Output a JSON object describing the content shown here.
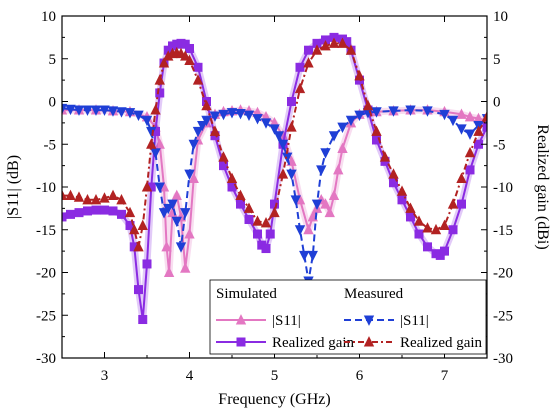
{
  "chart_data": {
    "type": "line",
    "xlabel": "Frequency (GHz)",
    "ylabel_left": "|S11| (dB)",
    "ylabel_right": "Realized gain (dBi)",
    "xlim": [
      2.5,
      7.5
    ],
    "ylim_left": [
      -30,
      10
    ],
    "ylim_right": [
      -30,
      10
    ],
    "x_ticks": [
      3,
      4,
      5,
      6,
      7
    ],
    "y_ticks": [
      -30,
      -25,
      -20,
      -15,
      -10,
      -5,
      0,
      5,
      10
    ],
    "grid": false,
    "legend": {
      "placement": "bottom-right",
      "group_titles": [
        "Simulated",
        "Measured"
      ]
    },
    "series": [
      {
        "name": "|S11|",
        "group": "Simulated",
        "axis": "left",
        "color": "#e377c2",
        "marker": "triangle-up",
        "line": "solid",
        "x": [
          2.5,
          2.7,
          2.9,
          3.1,
          3.3,
          3.5,
          3.6,
          3.65,
          3.7,
          3.73,
          3.76,
          3.8,
          3.85,
          3.9,
          3.95,
          4.0,
          4.05,
          4.1,
          4.2,
          4.3,
          4.4,
          4.5,
          4.6,
          4.7,
          4.8,
          4.9,
          5.0,
          5.1,
          5.2,
          5.3,
          5.4,
          5.45,
          5.5,
          5.55,
          5.6,
          5.65,
          5.7,
          5.75,
          5.8,
          5.9,
          6.0,
          6.2,
          6.4,
          6.6,
          6.8,
          7.0,
          7.2,
          7.3,
          7.4,
          7.5
        ],
        "y": [
          -1.0,
          -1.0,
          -1.0,
          -1.1,
          -1.2,
          -1.8,
          -3.0,
          -5.0,
          -10.0,
          -17.0,
          -20.0,
          -13.0,
          -11.0,
          -13.5,
          -19.5,
          -15.5,
          -9.0,
          -4.5,
          -2.5,
          -1.5,
          -1.2,
          -1.1,
          -1.0,
          -1.1,
          -1.3,
          -1.8,
          -2.5,
          -4.0,
          -7.0,
          -11.5,
          -15.0,
          -13.5,
          -12.5,
          -11.5,
          -12.0,
          -13.0,
          -11.0,
          -8.0,
          -5.5,
          -2.5,
          -1.5,
          -1.2,
          -1.1,
          -1.0,
          -1.0,
          -1.2,
          -1.5,
          -1.8,
          -2.0,
          -2.2
        ]
      },
      {
        "name": "Realized gain",
        "group": "Simulated",
        "axis": "right",
        "color": "#8a2be2",
        "marker": "square",
        "line": "solid",
        "x": [
          2.5,
          2.6,
          2.7,
          2.8,
          2.9,
          3.0,
          3.1,
          3.2,
          3.3,
          3.35,
          3.4,
          3.45,
          3.5,
          3.55,
          3.6,
          3.65,
          3.7,
          3.75,
          3.8,
          3.85,
          3.9,
          3.95,
          4.0,
          4.1,
          4.2,
          4.3,
          4.4,
          4.5,
          4.6,
          4.7,
          4.8,
          4.85,
          4.9,
          4.95,
          5.0,
          5.1,
          5.2,
          5.3,
          5.4,
          5.5,
          5.6,
          5.7,
          5.8,
          5.85,
          5.9,
          6.0,
          6.1,
          6.2,
          6.3,
          6.4,
          6.5,
          6.6,
          6.7,
          6.8,
          6.9,
          6.95,
          7.0,
          7.1,
          7.2,
          7.3,
          7.4,
          7.5
        ],
        "y": [
          -13.5,
          -13.2,
          -13.0,
          -12.8,
          -12.7,
          -12.7,
          -12.8,
          -13.2,
          -14.5,
          -17.0,
          -22.0,
          -25.5,
          -19.0,
          -10.0,
          -3.5,
          1.0,
          4.5,
          6.0,
          6.5,
          6.7,
          6.8,
          6.7,
          6.2,
          4.0,
          0.0,
          -4.0,
          -7.5,
          -10.0,
          -12.0,
          -13.8,
          -15.5,
          -16.8,
          -17.2,
          -15.5,
          -12.0,
          -5.0,
          0.0,
          4.0,
          6.0,
          6.8,
          7.2,
          7.5,
          7.3,
          7.0,
          6.0,
          2.5,
          -1.0,
          -4.5,
          -7.0,
          -9.5,
          -11.5,
          -13.5,
          -15.5,
          -17.0,
          -17.8,
          -18.0,
          -17.5,
          -15.0,
          -12.0,
          -8.0,
          -5.0,
          -3.0
        ]
      },
      {
        "name": "|S11|",
        "group": "Measured",
        "axis": "left",
        "color": "#1f3fd6",
        "marker": "triangle-down",
        "line": "dashed",
        "x": [
          2.5,
          2.6,
          2.7,
          2.8,
          2.9,
          3.0,
          3.1,
          3.2,
          3.3,
          3.4,
          3.5,
          3.55,
          3.6,
          3.65,
          3.7,
          3.75,
          3.8,
          3.85,
          3.9,
          3.95,
          4.0,
          4.05,
          4.1,
          4.15,
          4.2,
          4.3,
          4.4,
          4.5,
          4.6,
          4.7,
          4.8,
          4.9,
          5.0,
          5.05,
          5.1,
          5.15,
          5.2,
          5.25,
          5.3,
          5.35,
          5.4,
          5.45,
          5.5,
          5.55,
          5.6,
          5.7,
          5.8,
          5.9,
          6.0,
          6.1,
          6.2,
          6.4,
          6.6,
          6.8,
          7.0,
          7.1,
          7.2,
          7.3,
          7.4,
          7.5
        ],
        "y": [
          -0.8,
          -0.9,
          -1.0,
          -1.0,
          -1.0,
          -1.0,
          -1.1,
          -1.2,
          -1.3,
          -1.6,
          -2.2,
          -3.5,
          -6.0,
          -10.0,
          -13.0,
          -12.5,
          -12.0,
          -14.0,
          -17.0,
          -13.0,
          -8.5,
          -5.0,
          -3.5,
          -2.8,
          -2.2,
          -1.7,
          -1.5,
          -1.3,
          -1.4,
          -1.6,
          -2.0,
          -2.5,
          -3.2,
          -4.0,
          -5.0,
          -6.5,
          -8.5,
          -11.5,
          -15.0,
          -18.0,
          -21.0,
          -18.0,
          -12.0,
          -8.0,
          -6.0,
          -4.0,
          -3.0,
          -2.2,
          -1.6,
          -1.3,
          -1.2,
          -1.1,
          -1.0,
          -1.1,
          -1.5,
          -2.2,
          -3.2,
          -3.8,
          -2.8,
          -2.0
        ]
      },
      {
        "name": "Realized gain",
        "group": "Measured",
        "axis": "right",
        "color": "#b22222",
        "marker": "triangle-up",
        "line": "dash-dot",
        "x": [
          2.5,
          2.6,
          2.7,
          2.8,
          2.9,
          3.0,
          3.1,
          3.2,
          3.3,
          3.35,
          3.4,
          3.45,
          3.5,
          3.55,
          3.6,
          3.65,
          3.7,
          3.75,
          3.8,
          3.85,
          3.9,
          3.95,
          4.0,
          4.1,
          4.2,
          4.3,
          4.4,
          4.5,
          4.6,
          4.7,
          4.8,
          4.9,
          5.0,
          5.1,
          5.2,
          5.3,
          5.4,
          5.5,
          5.6,
          5.7,
          5.8,
          5.9,
          6.0,
          6.1,
          6.2,
          6.3,
          6.4,
          6.5,
          6.6,
          6.7,
          6.8,
          6.9,
          7.0,
          7.1,
          7.2,
          7.3,
          7.4,
          7.5
        ],
        "y": [
          -11.0,
          -11.0,
          -11.2,
          -11.5,
          -11.5,
          -11.3,
          -11.0,
          -11.5,
          -13.0,
          -15.0,
          -17.0,
          -14.5,
          -10.0,
          -5.0,
          -1.0,
          2.5,
          4.5,
          5.3,
          5.6,
          5.7,
          5.6,
          5.3,
          4.8,
          2.5,
          -0.5,
          -3.5,
          -6.5,
          -9.0,
          -11.0,
          -12.5,
          -14.0,
          -14.2,
          -13.0,
          -8.5,
          -3.0,
          1.5,
          4.5,
          6.0,
          6.5,
          6.8,
          6.8,
          6.0,
          3.0,
          -0.5,
          -3.5,
          -6.5,
          -8.5,
          -10.5,
          -12.5,
          -14.0,
          -14.8,
          -15.0,
          -14.5,
          -12.0,
          -9.0,
          -6.0,
          -3.5,
          -1.8
        ]
      }
    ]
  }
}
